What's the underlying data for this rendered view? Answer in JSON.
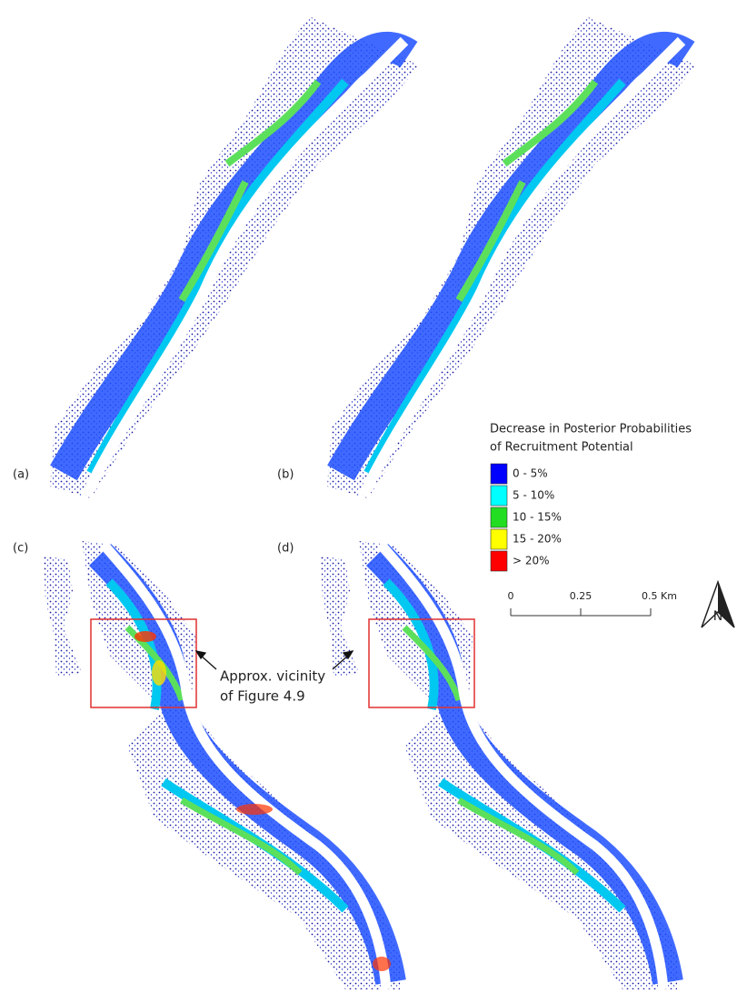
{
  "panels": {
    "a": "(a)",
    "b": "(b)",
    "c": "(c)",
    "d": "(d)"
  },
  "legend": {
    "title_lines": [
      "Decrease in Posterior Probabilities",
      "of Recruitment Potential"
    ],
    "items": [
      {
        "label": "0 - 5%",
        "color": "#0000ff"
      },
      {
        "label": "5 - 10%",
        "color": "#00ffff"
      },
      {
        "label": "10 - 15%",
        "color": "#22dd22"
      },
      {
        "label": "15 - 20%",
        "color": "#ffff00"
      },
      {
        "label": "> 20%",
        "color": "#ff0000"
      }
    ]
  },
  "scale_bar": {
    "labels": [
      "0",
      "0.25",
      "0.5 Km"
    ]
  },
  "north_arrow": {
    "label": "N"
  },
  "annotation": {
    "lines": [
      "Approx. vicinity",
      "of Figure 4.9"
    ]
  }
}
